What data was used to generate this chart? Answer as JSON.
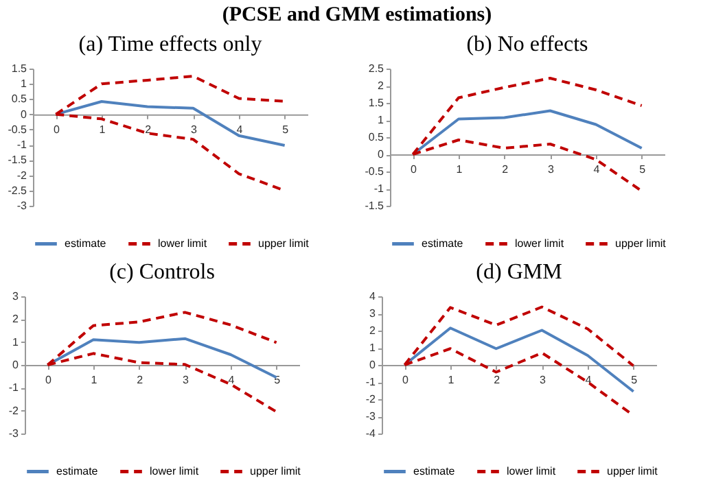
{
  "chart_data": [
    {
      "type": "line",
      "title": "(a) Time effects only",
      "annotations": [
        "(PCSE and GMM estimations)"
      ],
      "categories": [
        "0",
        "1",
        "2",
        "3",
        "4",
        "5"
      ],
      "ylim": [
        -3,
        1.5
      ],
      "yticks": [
        -3,
        -2.5,
        -2,
        -1.5,
        -1,
        -0.5,
        0,
        0.5,
        1,
        1.5
      ],
      "legend": "bottom",
      "series": [
        {
          "name": "estimate",
          "color": "#4f81bd",
          "line_style": "solid",
          "values": [
            0,
            0.42,
            0.25,
            0.2,
            -0.7,
            -1.02
          ]
        },
        {
          "name": "lower limit",
          "color": "#c00000",
          "line_style": "dashed",
          "values": [
            0,
            -0.15,
            -0.62,
            -0.82,
            -1.95,
            -2.5
          ]
        },
        {
          "name": "upper limit",
          "color": "#c00000",
          "line_style": "dashed",
          "values": [
            0,
            1.0,
            1.12,
            1.25,
            0.52,
            0.43
          ]
        }
      ]
    },
    {
      "type": "line",
      "title": "(b) No effects",
      "categories": [
        "0",
        "1",
        "2",
        "3",
        "4",
        "5"
      ],
      "ylim": [
        -1.5,
        2.5
      ],
      "yticks": [
        -1.5,
        -1,
        -0.5,
        0,
        0.5,
        1,
        1.5,
        2,
        2.5
      ],
      "legend": "bottom",
      "series": [
        {
          "name": "estimate",
          "color": "#4f81bd",
          "line_style": "solid",
          "values": [
            0,
            1.03,
            1.07,
            1.27,
            0.87,
            0.18
          ]
        },
        {
          "name": "lower limit",
          "color": "#c00000",
          "line_style": "dashed",
          "values": [
            0,
            0.42,
            0.18,
            0.3,
            -0.15,
            -1.07
          ]
        },
        {
          "name": "upper limit",
          "color": "#c00000",
          "line_style": "dashed",
          "values": [
            0,
            1.65,
            1.95,
            2.22,
            1.88,
            1.42
          ]
        }
      ]
    },
    {
      "type": "line",
      "title": "(c) Controls",
      "categories": [
        "0",
        "1",
        "2",
        "3",
        "4",
        "5"
      ],
      "ylim": [
        -3,
        3
      ],
      "yticks": [
        -3,
        -2,
        -1,
        0,
        1,
        2,
        3
      ],
      "legend": "bottom",
      "series": [
        {
          "name": "estimate",
          "color": "#4f81bd",
          "line_style": "solid",
          "values": [
            0,
            1.1,
            0.98,
            1.15,
            0.45,
            -0.55
          ]
        },
        {
          "name": "lower limit",
          "color": "#c00000",
          "line_style": "dashed",
          "values": [
            0,
            0.5,
            0.1,
            0.02,
            -0.85,
            -2.05
          ]
        },
        {
          "name": "upper limit",
          "color": "#c00000",
          "line_style": "dashed",
          "values": [
            0,
            1.72,
            1.88,
            2.3,
            1.75,
            0.98
          ]
        }
      ]
    },
    {
      "type": "line",
      "title": "(d) GMM",
      "categories": [
        "0",
        "1",
        "2",
        "3",
        "4",
        "5"
      ],
      "ylim": [
        -4,
        4
      ],
      "yticks": [
        -4,
        -3,
        -2,
        -1,
        0,
        1,
        2,
        3,
        4
      ],
      "legend": "bottom",
      "series": [
        {
          "name": "estimate",
          "color": "#4f81bd",
          "line_style": "solid",
          "values": [
            0,
            2.15,
            0.95,
            2.02,
            0.55,
            -1.55
          ]
        },
        {
          "name": "lower limit",
          "color": "#c00000",
          "line_style": "dashed",
          "values": [
            0,
            0.95,
            -0.42,
            0.7,
            -1.0,
            -2.95
          ]
        },
        {
          "name": "upper limit",
          "color": "#c00000",
          "line_style": "dashed",
          "values": [
            0,
            3.35,
            2.32,
            3.38,
            2.1,
            -0.05
          ]
        }
      ]
    }
  ]
}
